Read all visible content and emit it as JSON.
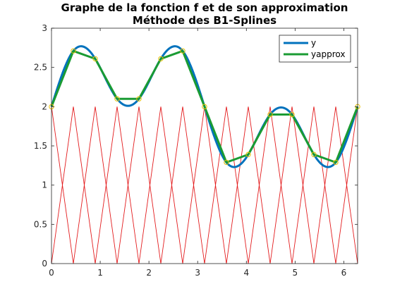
{
  "chart_data": {
    "type": "line",
    "title": "Graphe de la fonction f et de son approximation",
    "subtitle": "Méthode des B1-Splines",
    "xlim": [
      0,
      6.2832
    ],
    "ylim": [
      0,
      3
    ],
    "xticks": [
      0,
      1,
      2,
      3,
      4,
      5,
      6
    ],
    "yticks": [
      0,
      0.5,
      1,
      1.5,
      2,
      2.5,
      3
    ],
    "xtick_labels": [
      "0",
      "1",
      "2",
      "3",
      "4",
      "5",
      "6"
    ],
    "ytick_labels": [
      "0",
      "0.5",
      "1",
      "1.5",
      "2",
      "2.5",
      "3"
    ],
    "grid": false,
    "legend_position": "top-right",
    "nodes_x": [
      0,
      0.4488,
      0.8976,
      1.3464,
      1.7952,
      2.244,
      2.6928,
      3.1416,
      3.5904,
      4.0392,
      4.488,
      4.9368,
      5.3856,
      5.8344,
      6.2832
    ],
    "nodes_y": [
      2.0,
      2.71,
      2.61,
      2.1,
      2.1,
      2.61,
      2.71,
      2.0,
      1.29,
      1.39,
      1.9,
      1.9,
      1.39,
      1.29,
      2.0
    ],
    "series": [
      {
        "name": "y",
        "color": "#0072BD",
        "style": "smooth-curve"
      },
      {
        "name": "yapprox",
        "color": "#1A9B33",
        "style": "piecewise-linear"
      }
    ],
    "basis_functions": {
      "color": "#E31A1C",
      "count": 15,
      "shape": "hat",
      "peak": 2
    },
    "node_markers": {
      "color": "#E8C000",
      "shape": "circle"
    }
  }
}
